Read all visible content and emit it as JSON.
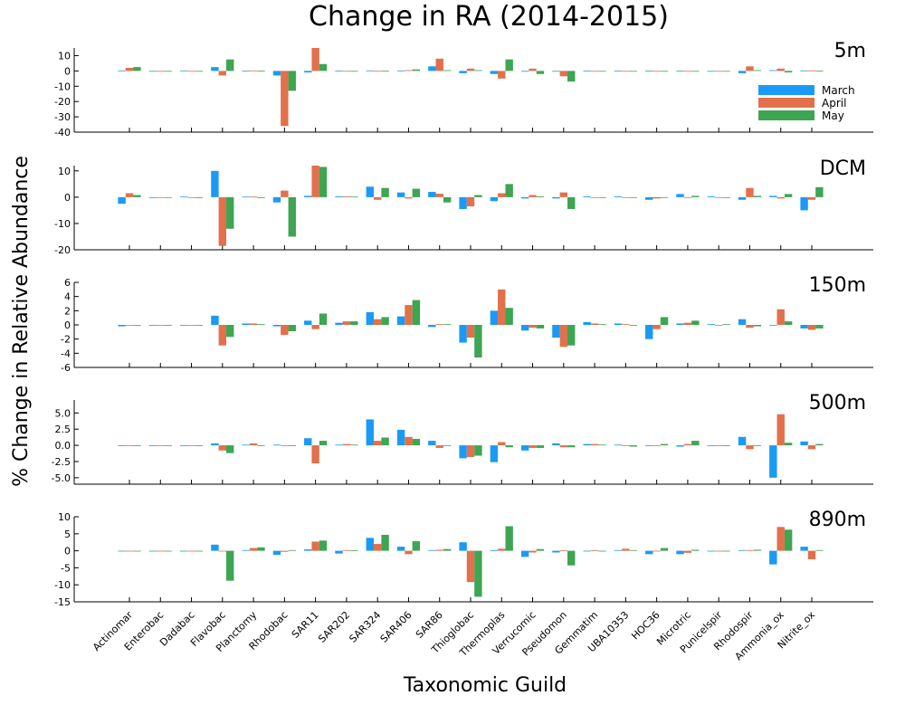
{
  "chart_data": {
    "type": "bar",
    "title": "Change in RA (2014-2015)",
    "xlabel": "Taxonomic Guild",
    "ylabel": "% Change in Relative Abundance",
    "legend_position": "inside-right of first panel",
    "grid": false,
    "colors": {
      "March": "#1b9af5",
      "April": "#e2704b",
      "May": "#3ea553"
    },
    "series_names": [
      "March",
      "April",
      "May"
    ],
    "categories": [
      "Actinomar",
      "Enterobac",
      "Dadabac",
      "Flavobac",
      "Planctomy",
      "Rhodobac",
      "SAR11",
      "SAR202",
      "SAR324",
      "SAR406",
      "SAR86",
      "Thioglobac",
      "Thermoplas",
      "Verrucomic",
      "Pseudomon",
      "Gemmatim",
      "UBA10353",
      "HOC36",
      "Microtric",
      "Punicelspir",
      "Rhodospir",
      "Ammonia_ox",
      "Nitrite_ox"
    ],
    "panels": [
      {
        "label": "5m",
        "ylim": [
          -40,
          15
        ],
        "yticks": [
          10,
          0,
          -10,
          -20,
          -30,
          -40
        ],
        "show_legend": true,
        "series": [
          {
            "name": "March",
            "values": [
              0.3,
              0,
              0.3,
              2.5,
              0.2,
              -3,
              -1,
              0.1,
              0.3,
              0.3,
              3,
              -1.5,
              -2,
              -0.5,
              -0.5,
              0.2,
              0.1,
              0.1,
              0.1,
              0,
              -1.5,
              0.5,
              0.3
            ]
          },
          {
            "name": "April",
            "values": [
              2,
              0,
              0,
              -3,
              0.3,
              -36,
              15,
              0,
              0,
              0.5,
              8,
              1.5,
              -5,
              1.5,
              -3.5,
              0,
              0,
              0,
              0,
              0,
              3,
              1.5,
              0.3
            ]
          },
          {
            "name": "May",
            "values": [
              2.5,
              0,
              0,
              7.5,
              0.2,
              -13,
              4.5,
              0,
              0.2,
              1,
              0.5,
              0.5,
              7.5,
              -2,
              -7,
              0,
              0,
              0,
              0,
              0,
              0.5,
              -1,
              0.2
            ]
          }
        ]
      },
      {
        "label": "DCM",
        "ylim": [
          -20,
          12
        ],
        "yticks": [
          10,
          0,
          -10,
          -20
        ],
        "show_legend": false,
        "series": [
          {
            "name": "March",
            "values": [
              -2.5,
              0,
              0.2,
              10,
              0.2,
              -2,
              0.5,
              0.3,
              4,
              1.8,
              2,
              -4.5,
              -1.5,
              -0.5,
              -0.5,
              0.3,
              0.3,
              -1,
              1.2,
              0.3,
              -1,
              0.5,
              -5
            ]
          },
          {
            "name": "April",
            "values": [
              1.5,
              0,
              0,
              -18.5,
              0.2,
              2.5,
              12,
              0.3,
              -1,
              -0.5,
              1.3,
              -3.5,
              1.5,
              0.8,
              1.8,
              0,
              0,
              -0.5,
              0,
              0,
              3.5,
              -0.5,
              -1
            ]
          },
          {
            "name": "May",
            "values": [
              0.8,
              0,
              -0.3,
              -12,
              -0.3,
              -15,
              11.5,
              0.2,
              3.5,
              3.2,
              -2,
              0.8,
              5,
              0.3,
              -4.5,
              0,
              0,
              0,
              0.5,
              0,
              0.5,
              1.2,
              3.8
            ]
          }
        ]
      },
      {
        "label": "150m",
        "ylim": [
          -6,
          6
        ],
        "yticks": [
          6,
          4,
          2,
          0,
          -2,
          -4,
          -6
        ],
        "show_legend": false,
        "series": [
          {
            "name": "March",
            "values": [
              -0.2,
              0,
              0,
              1.3,
              0.2,
              -0.2,
              0.6,
              0.3,
              1.8,
              1.2,
              -0.3,
              -2.5,
              2,
              -0.8,
              -1.8,
              0.4,
              0.2,
              -2,
              0.2,
              0.1,
              0.8,
              -0.1,
              -0.5
            ]
          },
          {
            "name": "April",
            "values": [
              -0.1,
              0,
              0,
              -2.9,
              0.2,
              -1.4,
              -0.6,
              0.5,
              0.8,
              2.8,
              0.1,
              -1.8,
              5,
              -0.4,
              -3.1,
              0.2,
              0.1,
              -0.6,
              0.3,
              0,
              -0.4,
              2.2,
              -0.7
            ]
          },
          {
            "name": "May",
            "values": [
              0,
              0,
              -0.1,
              -1.7,
              0.1,
              -0.9,
              1.6,
              0.5,
              1.1,
              3.5,
              0.1,
              -4.6,
              2.4,
              -0.5,
              -2.9,
              0.1,
              0,
              1.1,
              0.6,
              0.1,
              -0.2,
              0.5,
              -0.5
            ]
          }
        ]
      },
      {
        "label": "500m",
        "ylim": [
          -6,
          7
        ],
        "yticks": [
          5.0,
          2.5,
          0.0,
          -2.5,
          -5.0
        ],
        "show_legend": false,
        "series": [
          {
            "name": "March",
            "values": [
              0,
              0,
              0,
              0.3,
              0.1,
              0.1,
              1.1,
              0.1,
              4,
              2.4,
              0.7,
              -2,
              -2.6,
              -0.8,
              0.3,
              0.2,
              0.1,
              -0.1,
              -0.2,
              0,
              1.3,
              -5,
              0.6
            ]
          },
          {
            "name": "April",
            "values": [
              0,
              0,
              0,
              -0.8,
              0.3,
              0,
              -2.8,
              0.2,
              0.7,
              1.3,
              -0.4,
              -1.8,
              0.5,
              -0.4,
              -0.3,
              0.2,
              0,
              0,
              0.2,
              0,
              -0.6,
              4.8,
              -0.6
            ]
          },
          {
            "name": "May",
            "values": [
              0,
              0,
              0,
              -1.2,
              -0.1,
              0,
              0.7,
              0.1,
              1.2,
              1,
              -0.1,
              -1.6,
              -0.3,
              -0.4,
              -0.3,
              0.1,
              -0.2,
              0.2,
              0.7,
              0,
              0,
              0.4,
              0.2
            ]
          }
        ]
      },
      {
        "label": "890m",
        "ylim": [
          -15,
          10
        ],
        "yticks": [
          10,
          5,
          0,
          -5,
          -10,
          -15
        ],
        "show_legend": false,
        "series": [
          {
            "name": "March",
            "values": [
              0,
              0,
              0,
              1.8,
              0.2,
              -1.2,
              0.4,
              -0.8,
              3.8,
              1.2,
              0.2,
              2.5,
              0.1,
              -1.8,
              -0.5,
              0,
              0.2,
              -1,
              -1,
              0,
              0.2,
              -4,
              1.2
            ]
          },
          {
            "name": "April",
            "values": [
              0,
              0,
              -0.2,
              -0.2,
              0.8,
              -0.3,
              2.7,
              0.2,
              2,
              -1,
              0.3,
              -9.2,
              0.6,
              -0.5,
              0.1,
              0.1,
              0.6,
              0,
              -0.6,
              0,
              0.2,
              7,
              -2.5
            ]
          },
          {
            "name": "May",
            "values": [
              0,
              0,
              -0.2,
              -8.8,
              1,
              0.2,
              3,
              0.1,
              4.7,
              2.8,
              0.5,
              -13.5,
              7.2,
              0.5,
              -4.3,
              0,
              0.2,
              0.8,
              0.3,
              0,
              0.3,
              6.2,
              0.2
            ]
          }
        ]
      }
    ]
  }
}
